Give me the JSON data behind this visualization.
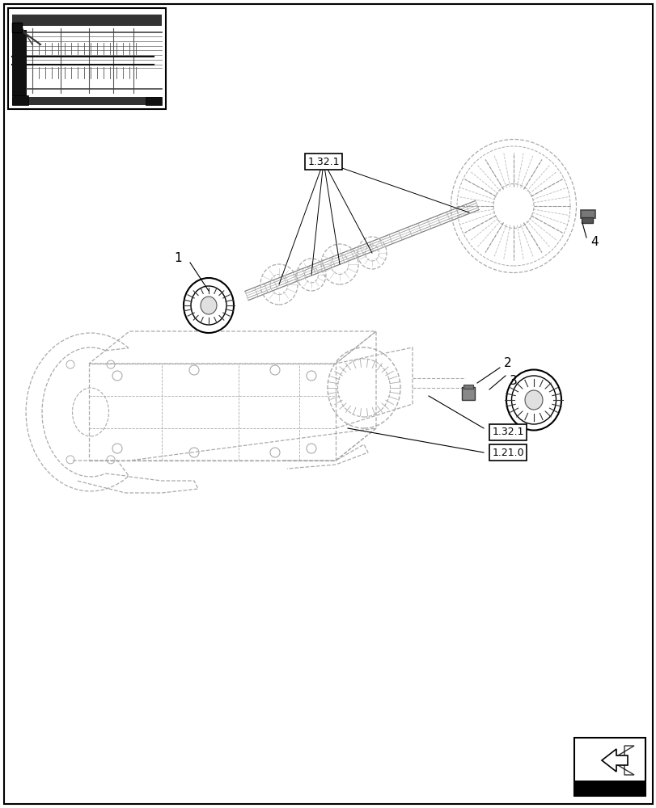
{
  "bg_color": "#ffffff",
  "line_color": "#000000",
  "light_line_color": "#bbbbbb",
  "fig_width": 8.12,
  "fig_height": 10.0,
  "dpi": 100,
  "label_1321_upper": "1.32.1",
  "label_1321_lower": "1.32.1",
  "label_1210": "1.21.0",
  "part_labels": [
    "1",
    "2",
    "3",
    "4"
  ]
}
